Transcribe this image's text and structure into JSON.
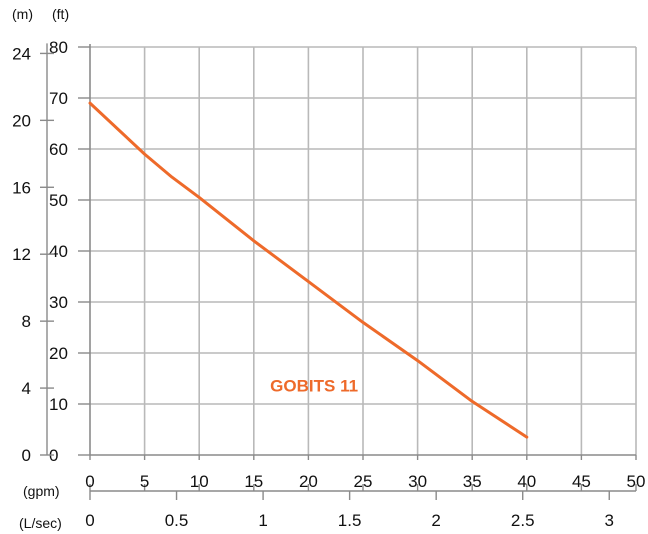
{
  "units": {
    "m": "(m)",
    "ft": "(ft)",
    "gpm": "(gpm)",
    "lsec": "(L/sec)"
  },
  "chart_data": {
    "type": "line",
    "title": "",
    "grid": true,
    "x_gpm": {
      "range": [
        0,
        50
      ],
      "ticks": [
        0,
        5,
        10,
        15,
        20,
        25,
        30,
        35,
        40,
        45,
        50
      ]
    },
    "x_lsec": {
      "range": [
        0,
        3.1545
      ],
      "ticks": [
        0,
        0.5,
        1,
        1.5,
        2,
        2.5,
        3
      ],
      "tick_labels": [
        "0",
        "0.5",
        "1",
        "1.5",
        "2",
        "2.5",
        "3"
      ]
    },
    "y_ft": {
      "range": [
        0,
        80
      ],
      "ticks": [
        0,
        10,
        20,
        30,
        40,
        50,
        60,
        70,
        80
      ]
    },
    "y_m": {
      "range": [
        0,
        24.384
      ],
      "ticks": [
        0,
        4,
        8,
        12,
        16,
        20,
        24
      ]
    },
    "series": [
      {
        "name": "GOBITS 11",
        "color": "#EE6A2A",
        "x": [
          0,
          2.5,
          5,
          7.5,
          10,
          15,
          20,
          25,
          30,
          35,
          40
        ],
        "y": [
          69,
          64,
          59,
          54.5,
          50.5,
          42,
          34,
          26,
          18.5,
          10.5,
          3.5
        ]
      }
    ]
  }
}
